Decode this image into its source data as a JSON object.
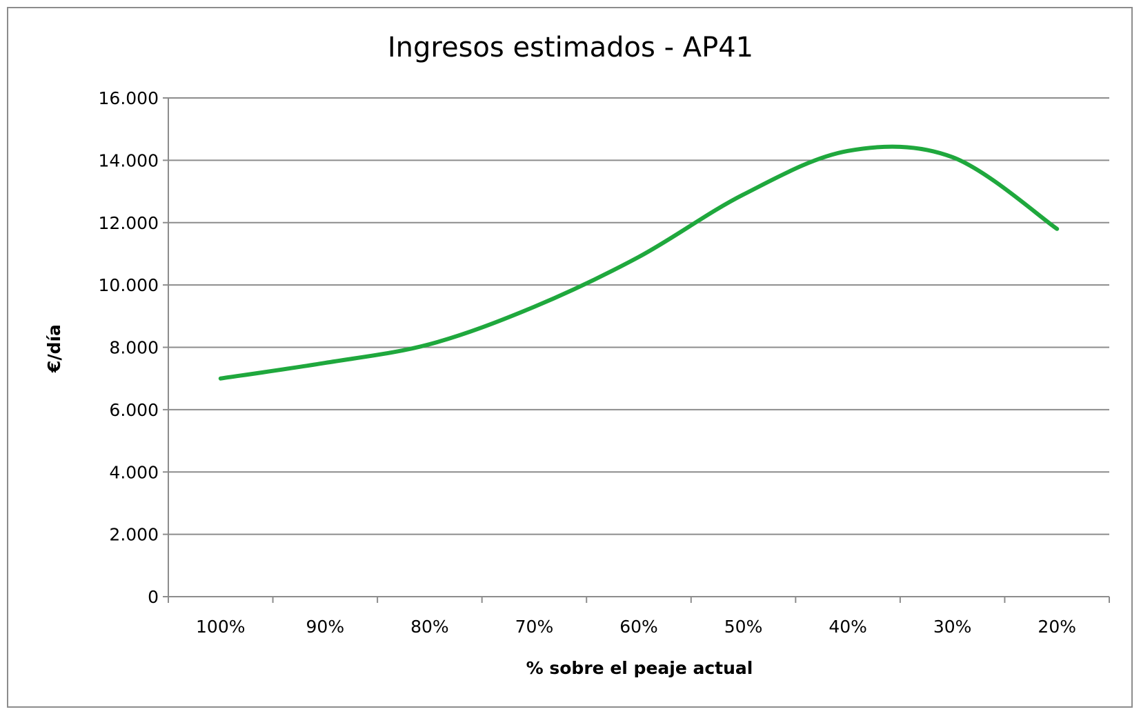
{
  "chart_data": {
    "type": "line",
    "title": "Ingresos estimados - AP41",
    "xlabel": "% sobre el peaje actual",
    "ylabel": "€/día",
    "categories": [
      "100%",
      "90%",
      "80%",
      "70%",
      "60%",
      "50%",
      "40%",
      "30%",
      "20%"
    ],
    "series": [
      {
        "values": [
          7000,
          7500,
          8100,
          9300,
          10900,
          12900,
          14300,
          14100,
          11800
        ]
      }
    ],
    "ylim": [
      0,
      16000
    ],
    "yticks": [
      0,
      2000,
      4000,
      6000,
      8000,
      10000,
      12000,
      14000,
      16000
    ],
    "ytick_labels": [
      "0",
      "2.000",
      "4.000",
      "6.000",
      "8.000",
      "10.000",
      "12.000",
      "14.000",
      "16.000"
    ],
    "grid": true,
    "legend": "none",
    "colors": {
      "series": "#1fa83d",
      "grid": "#8c8c8c",
      "axis": "#8c8c8c",
      "frame": "#8c8c8c"
    }
  }
}
